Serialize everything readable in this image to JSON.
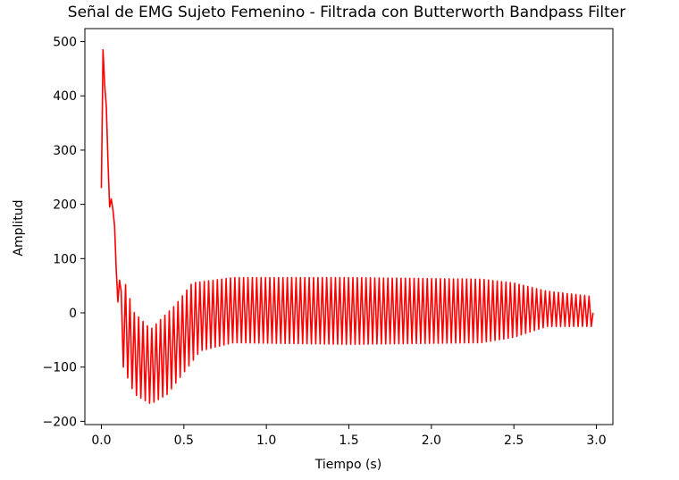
{
  "chart_data": {
    "type": "line",
    "title": "Señal de EMG Sujeto Femenino - Filtrada con Butterworth Bandpass Filter",
    "xlabel": "Tiempo (s)",
    "ylabel": "Amplitud",
    "xlim": [
      -0.1,
      3.1
    ],
    "ylim": [
      -206,
      524
    ],
    "xticks": [
      0.0,
      0.5,
      1.0,
      1.5,
      2.0,
      2.5,
      3.0
    ],
    "xtick_labels": [
      "0.0",
      "0.5",
      "1.0",
      "1.5",
      "2.0",
      "2.5",
      "3.0"
    ],
    "yticks": [
      -200,
      -100,
      0,
      100,
      200,
      300,
      400,
      500
    ],
    "ytick_labels": [
      "−200",
      "−100",
      "0",
      "100",
      "200",
      "300",
      "400",
      "500"
    ],
    "grid": false,
    "legend": "none",
    "series": [
      {
        "color": "#ff0000",
        "x": [
          0.0,
          0.01,
          0.02,
          0.03,
          0.04,
          0.05,
          0.06,
          0.07,
          0.08,
          0.09,
          0.1,
          0.11,
          0.12,
          0.13,
          0.14,
          0.15,
          0.16,
          0.17,
          0.18,
          0.2,
          0.22,
          0.24,
          0.26,
          0.28,
          0.3,
          0.33,
          0.36,
          0.4,
          0.45,
          0.5,
          0.55,
          0.6,
          0.7,
          0.8,
          1.0,
          1.2,
          1.5,
          1.8,
          2.0,
          2.2,
          2.4,
          2.5,
          2.6,
          2.7,
          2.8,
          2.9,
          2.95,
          2.98
        ],
        "y": [
          230,
          485,
          420,
          380,
          280,
          195,
          210,
          190,
          160,
          80,
          20,
          60,
          40,
          78,
          -90,
          -40,
          -50,
          5,
          -60,
          -150,
          -115,
          -165,
          -105,
          -168,
          -110,
          -162,
          -100,
          -140,
          -85,
          -100,
          -65,
          -45,
          -35,
          -30,
          -25,
          -20,
          -20,
          -20,
          -20,
          -20,
          -20,
          -20,
          -20,
          -20,
          -20,
          -20,
          -20,
          0
        ]
      }
    ],
    "waveform": {
      "oscillation_start_x": 0.12,
      "oscillation_end_x": 2.98,
      "peak_spacing_x": 0.0265,
      "upper_envelope": [
        [
          0.12,
          78
        ],
        [
          0.2,
          0
        ],
        [
          0.3,
          -30
        ],
        [
          0.45,
          15
        ],
        [
          0.55,
          55
        ],
        [
          0.8,
          65
        ],
        [
          1.5,
          65
        ],
        [
          2.3,
          62
        ],
        [
          2.5,
          55
        ],
        [
          2.7,
          40
        ],
        [
          2.98,
          30
        ]
      ],
      "lower_envelope": [
        [
          0.12,
          -90
        ],
        [
          0.2,
          -150
        ],
        [
          0.3,
          -168
        ],
        [
          0.4,
          -150
        ],
        [
          0.5,
          -110
        ],
        [
          0.6,
          -70
        ],
        [
          0.8,
          -55
        ],
        [
          1.5,
          -58
        ],
        [
          2.3,
          -55
        ],
        [
          2.5,
          -45
        ],
        [
          2.6,
          -35
        ],
        [
          2.7,
          -25
        ],
        [
          2.98,
          -25
        ]
      ]
    }
  }
}
